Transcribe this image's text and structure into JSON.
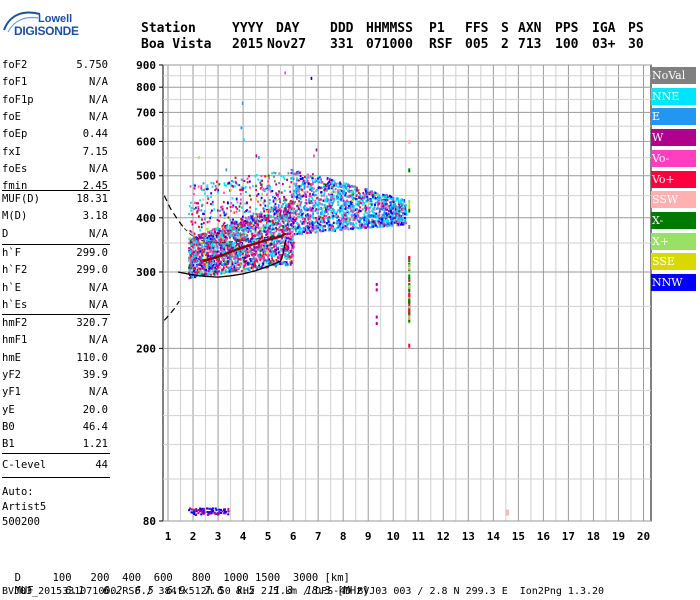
{
  "logo": {
    "line1": "Lowell",
    "line2": "DIGISONDE"
  },
  "header": {
    "labels": [
      "Station",
      "YYYY",
      "DAY",
      "DDD",
      "HHMMSS",
      "P1",
      "FFS",
      "S",
      "AXN",
      "PPS",
      "IGA",
      "PS"
    ],
    "values": [
      "Boa Vista",
      "2015",
      "Nov27",
      "331",
      "071000",
      "RSF",
      "005",
      "2",
      "713",
      "100",
      "03+",
      "30"
    ]
  },
  "params": {
    "group1": [
      {
        "label": "foF2",
        "value": "5.750"
      },
      {
        "label": "foF1",
        "value": "N/A"
      },
      {
        "label": "foF1p",
        "value": "N/A"
      },
      {
        "label": "foE",
        "value": "N/A"
      },
      {
        "label": "foEp",
        "value": "0.44"
      },
      {
        "label": "fxI",
        "value": "7.15"
      },
      {
        "label": "foEs",
        "value": "N/A"
      },
      {
        "label": "fmin",
        "value": "2.45"
      }
    ],
    "group2": [
      {
        "label": "MUF(D)",
        "value": "18.31"
      },
      {
        "label": "M(D)",
        "value": "3.18"
      },
      {
        "label": "D",
        "value": "N/A"
      }
    ],
    "group3": [
      {
        "label": "h`F",
        "value": "299.0"
      },
      {
        "label": "h`F2",
        "value": "299.0"
      },
      {
        "label": "h`E",
        "value": "N/A"
      },
      {
        "label": "h`Es",
        "value": "N/A"
      }
    ],
    "group4": [
      {
        "label": "hmF2",
        "value": "320.7"
      },
      {
        "label": "hmF1",
        "value": "N/A"
      },
      {
        "label": "hmE",
        "value": "110.0"
      },
      {
        "label": "yF2",
        "value": "39.9"
      },
      {
        "label": "yF1",
        "value": "N/A"
      },
      {
        "label": "yE",
        "value": "20.0"
      },
      {
        "label": "B0",
        "value": "46.4"
      },
      {
        "label": "B1",
        "value": "1.21"
      }
    ],
    "group5": [
      {
        "label": "C-level",
        "value": "44"
      }
    ],
    "auto": [
      "Auto:",
      "Artist5",
      "500200"
    ]
  },
  "legend": [
    {
      "label": "NoVal",
      "color": "#808080"
    },
    {
      "label": "NNE",
      "color": "#00e5ff"
    },
    {
      "label": "E",
      "color": "#2196f3"
    },
    {
      "label": "W",
      "color": "#b0008c"
    },
    {
      "label": "Vo-",
      "color": "#ff3fbf"
    },
    {
      "label": "Vo+",
      "color": "#ff003c"
    },
    {
      "label": "SSW",
      "color": "#ffb0b0"
    },
    {
      "label": "X-",
      "color": "#007a00"
    },
    {
      "label": "X+",
      "color": "#99e066"
    },
    {
      "label": "SSE",
      "color": "#d9d900"
    },
    {
      "label": "NNW",
      "color": "#0000ff"
    }
  ],
  "chart_data": {
    "type": "scatter",
    "x_ticks": [
      1,
      2,
      3,
      4,
      5,
      6,
      7,
      8,
      9,
      10,
      11,
      12,
      13,
      14,
      15,
      16,
      17,
      18,
      19,
      20
    ],
    "y_ticks": [
      80,
      200,
      300,
      400,
      500,
      600,
      700,
      800,
      900
    ],
    "xlim": [
      0.8,
      20.3
    ],
    "ylim": [
      80,
      900
    ],
    "y_scale": "log",
    "grid": true,
    "legend_position": "right",
    "echo_clusters": [
      {
        "name": "F2 main trace",
        "x_range": [
          1.8,
          6.0
        ],
        "y_range": [
          290,
          480
        ]
      },
      {
        "name": "F2 upper echoes",
        "x_range": [
          6.0,
          10.5
        ],
        "y_range": [
          370,
          570
        ]
      },
      {
        "name": "vertical streak near 10.6",
        "x_range": [
          10.5,
          10.7
        ],
        "y_range": [
          240,
          610
        ]
      }
    ],
    "profile_curve": {
      "x": [
        1.4,
        1.9,
        2.5,
        3.0,
        3.5,
        4.0,
        4.5,
        5.0,
        5.3,
        5.5,
        5.6,
        5.7
      ],
      "y": [
        300,
        296,
        293,
        292,
        294,
        297,
        302,
        309,
        314,
        318,
        330,
        355
      ]
    },
    "dashed_extrapolation": [
      {
        "x": [
          0.85,
          1.1,
          1.4,
          1.65
        ],
        "y": [
          450,
          420,
          395,
          378
        ]
      },
      {
        "x": [
          0.85,
          1.05,
          1.25,
          1.45
        ],
        "y": [
          232,
          239,
          247,
          257
        ]
      }
    ],
    "model_trace": {
      "x": [
        2.4,
        3.0,
        3.5,
        4.0,
        4.5,
        5.0,
        5.5,
        5.7
      ],
      "y": [
        318,
        325,
        334,
        342,
        349,
        356,
        362,
        368
      ]
    }
  },
  "footer": {
    "dist_label": "D",
    "dist_values": [
      "100",
      "200",
      "400",
      "600",
      "800",
      "1000",
      "1500",
      "3000"
    ],
    "dist_unit": "[km]",
    "muf_label": "MUF",
    "muf_values": [
      "6.1",
      "6.2",
      "6.5",
      "6.9",
      "7.6",
      "8.5",
      "11.3",
      "18.3"
    ],
    "muf_unit": "[MHz]",
    "info": "BVJ03_2015331071000.RSF / 384fx512h 50 kHz 2.5 km / DPS-4D BVJ03 003 / 2.8 N 299.3 E  Ion2Png 1.3.20"
  }
}
